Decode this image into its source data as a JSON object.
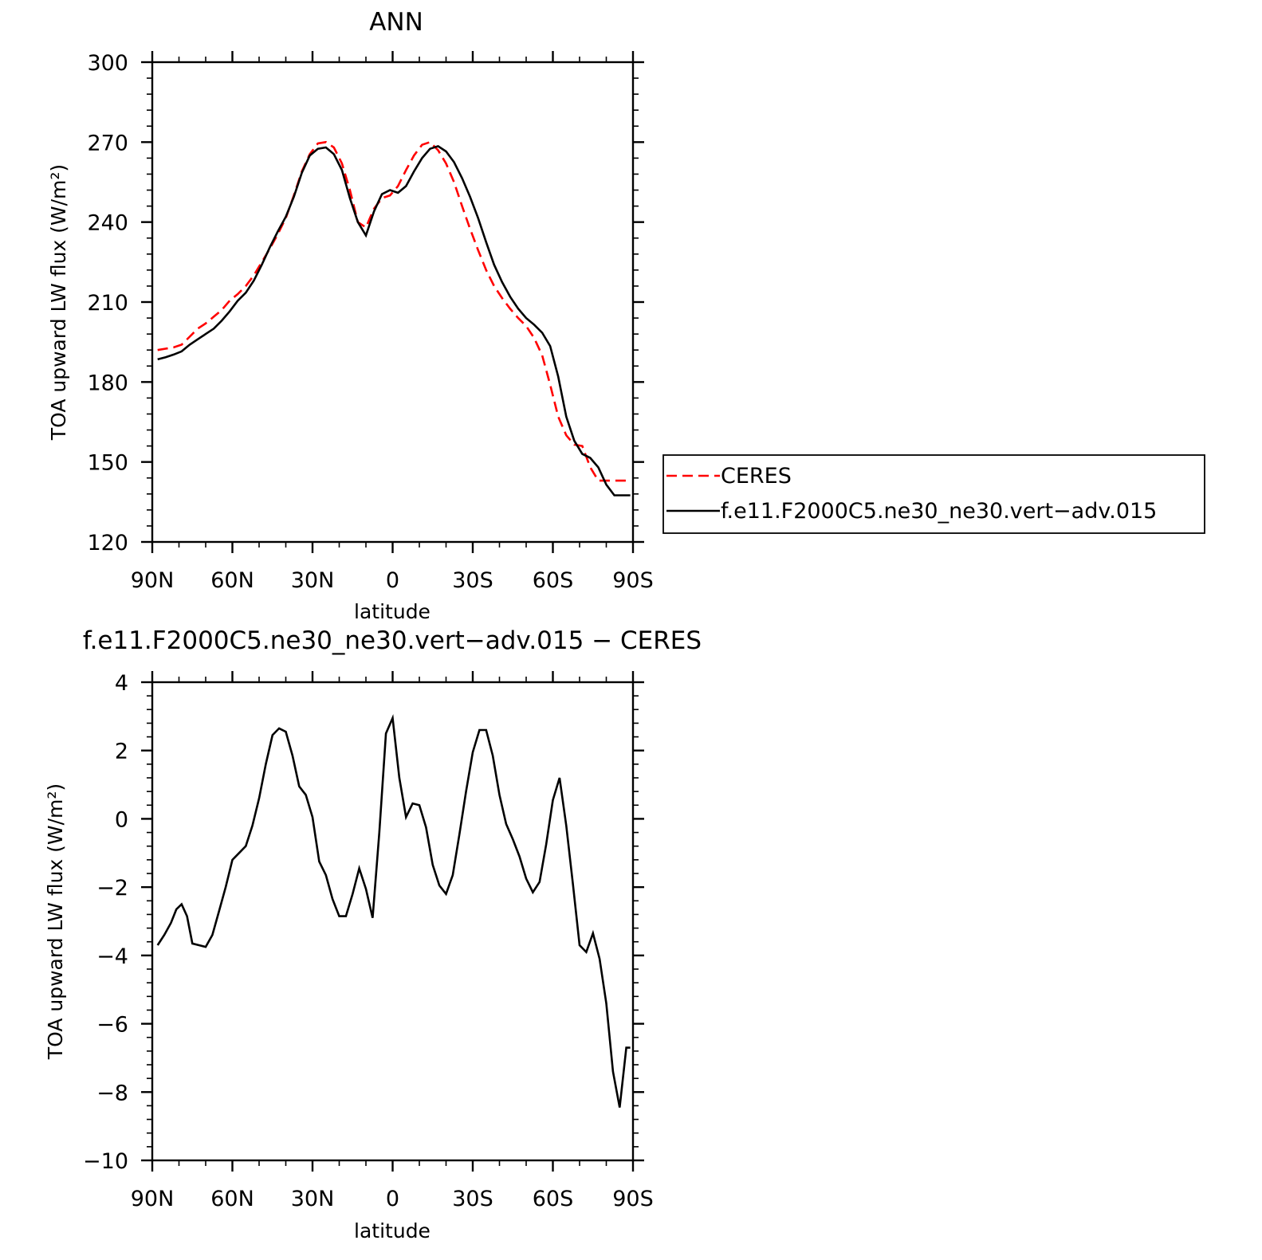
{
  "colors": {
    "ceres": "#ff0000",
    "model": "#000000",
    "axis": "#000000"
  },
  "chart_data": [
    {
      "type": "line",
      "title": "ANN",
      "xlabel": "latitude",
      "ylabel": "TOA upward LW flux (W/m²)",
      "xlim": [
        90,
        -90
      ],
      "ylim": [
        120,
        300
      ],
      "yticks": [
        120,
        150,
        180,
        210,
        240,
        270,
        300
      ],
      "xticks": [
        90,
        60,
        30,
        0,
        -30,
        -60,
        -90
      ],
      "xtick_labels": [
        "90N",
        "60N",
        "30N",
        "0",
        "30S",
        "60S",
        "90S"
      ],
      "legend": {
        "position": "right",
        "entries": [
          "CERES",
          "f.e11.F2000C5.ne30_ne30.vert−adv.015"
        ]
      },
      "series": [
        {
          "name": "CERES",
          "style": "dashed",
          "x": [
            88,
            85,
            82,
            79,
            76,
            73,
            70,
            67,
            64,
            61,
            58,
            55,
            52,
            49,
            46,
            43,
            40,
            37,
            34,
            31,
            28,
            25,
            22,
            19,
            16,
            13,
            10,
            7,
            4,
            1,
            -2,
            -5,
            -8,
            -11,
            -14,
            -17,
            -20,
            -23,
            -26,
            -29,
            -32,
            -35,
            -38,
            -41,
            -44,
            -47,
            -50,
            -53,
            -56,
            -59,
            -62,
            -65,
            -68,
            -71,
            -74,
            -77,
            -80,
            -83,
            -86,
            -89
          ],
          "y": [
            192,
            192.5,
            193,
            194,
            197,
            200,
            202,
            204.5,
            207,
            210.5,
            213,
            216,
            220,
            225,
            230,
            235.5,
            241.5,
            250,
            259,
            265.5,
            269.5,
            270,
            268,
            262,
            252,
            240,
            238,
            245,
            249,
            250,
            253.5,
            259.5,
            265,
            269,
            270,
            267,
            262,
            255,
            246,
            237.5,
            229.5,
            222,
            216,
            211.5,
            207.5,
            204,
            201,
            196.5,
            190,
            179,
            167,
            160,
            156.5,
            156,
            148,
            143,
            143,
            143,
            143,
            143
          ]
        },
        {
          "name": "f.e11.F2000C5.ne30_ne30.vert−adv.015",
          "style": "solid",
          "x": [
            88,
            85,
            82,
            79,
            76,
            73,
            70,
            67,
            64,
            61,
            58,
            55,
            52,
            49,
            46,
            43,
            40,
            37,
            34,
            31,
            28,
            25,
            22,
            19,
            16,
            13,
            10,
            7,
            4,
            1,
            -2,
            -5,
            -8,
            -11,
            -14,
            -17,
            -20,
            -23,
            -26,
            -29,
            -32,
            -35,
            -38,
            -41,
            -44,
            -47,
            -50,
            -53,
            -56,
            -59,
            -62,
            -65,
            -68,
            -71,
            -74,
            -77,
            -80,
            -83,
            -86,
            -89
          ],
          "y": [
            188.5,
            189.3,
            190.3,
            191.5,
            194,
            196,
            198,
            200,
            203,
            206.5,
            210.5,
            213.5,
            218,
            224,
            230.5,
            236.5,
            242,
            249.5,
            258.5,
            265,
            267.5,
            268,
            265.5,
            259.5,
            249,
            240,
            235,
            244,
            250.5,
            252,
            251,
            253.5,
            259,
            264,
            267.5,
            268.5,
            266.5,
            262.5,
            256.5,
            249.5,
            241.5,
            232.5,
            224,
            217.5,
            212,
            207.5,
            204,
            201.5,
            198.5,
            193.5,
            182,
            167,
            158,
            153,
            151.5,
            148,
            141.5,
            137.5,
            137.5,
            137.5
          ]
        }
      ]
    },
    {
      "type": "line",
      "title": "f.e11.F2000C5.ne30_ne30.vert−adv.015 − CERES",
      "xlabel": "latitude",
      "ylabel": "TOA upward LW flux (W/m²)",
      "xlim": [
        90,
        -90
      ],
      "ylim": [
        -10,
        4
      ],
      "yticks": [
        -10,
        -8,
        -6,
        -4,
        -2,
        0,
        2,
        4
      ],
      "ytick_labels": [
        "−10",
        "−8",
        "−6",
        "−4",
        "−2",
        "0",
        "2",
        "4"
      ],
      "xticks": [
        90,
        60,
        30,
        0,
        -30,
        -60,
        -90
      ],
      "xtick_labels": [
        "90N",
        "60N",
        "30N",
        "0",
        "30S",
        "60S",
        "90S"
      ],
      "series": [
        {
          "style": "solid",
          "x": [
            88,
            85.5,
            83,
            81,
            79,
            77,
            75,
            72.5,
            70,
            67.5,
            65,
            62.5,
            60,
            57.5,
            55,
            52.5,
            50,
            47.5,
            45,
            42.5,
            40,
            37.5,
            35,
            32.5,
            30,
            27.5,
            25,
            22.5,
            20,
            17.5,
            15,
            12.5,
            10,
            7.5,
            5,
            2.5,
            0,
            -2.5,
            -5,
            -7.5,
            -10,
            -12.5,
            -15,
            -17.5,
            -20,
            -22.5,
            -25,
            -27.5,
            -30,
            -32.5,
            -35,
            -37.5,
            -40,
            -42.5,
            -45,
            -47.5,
            -50,
            -52.5,
            -55,
            -57.5,
            -60,
            -62.5,
            -65,
            -67.5,
            -70,
            -72.5,
            -75,
            -77.5,
            -80,
            -82.5,
            -85,
            -87.5,
            -89
          ],
          "y": [
            -3.7,
            -3.4,
            -3.05,
            -2.65,
            -2.5,
            -2.85,
            -3.65,
            -3.7,
            -3.75,
            -3.4,
            -2.7,
            -2.0,
            -1.2,
            -1.0,
            -0.8,
            -0.2,
            0.6,
            1.6,
            2.45,
            2.65,
            2.55,
            1.85,
            0.95,
            0.7,
            0.05,
            -1.25,
            -1.65,
            -2.35,
            -2.85,
            -2.85,
            -2.2,
            -1.45,
            -2.05,
            -2.9,
            -0.4,
            2.5,
            2.95,
            1.2,
            0.05,
            0.45,
            0.4,
            -0.25,
            -1.35,
            -1.95,
            -2.2,
            -1.65,
            -0.45,
            0.8,
            1.95,
            2.6,
            2.6,
            1.85,
            0.7,
            -0.15,
            -0.6,
            -1.1,
            -1.75,
            -2.15,
            -1.85,
            -0.75,
            0.55,
            1.2,
            -0.2,
            -1.9,
            -3.7,
            -3.9,
            -3.35,
            -4.1,
            -5.4,
            -7.4,
            -8.45,
            -6.7,
            -6.7
          ]
        }
      ]
    }
  ]
}
